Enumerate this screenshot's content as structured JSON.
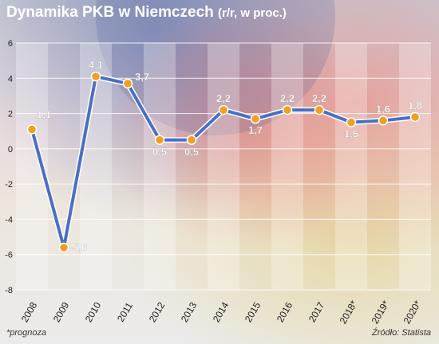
{
  "title": "Dynamika PKB w Niemczech",
  "title_sub": "(r/r, w proc.)",
  "footnote": "*prognoza",
  "source": "Źródło: Statista",
  "colors": {
    "line": "#4a6fc4",
    "line_outline": "#ffffff",
    "marker": "#f0a020",
    "label": "#ffffff",
    "axis_text": "#222222",
    "grid": "#ffffff"
  },
  "chart_data": {
    "type": "line",
    "title": "Dynamika PKB w Niemczech (r/r, w proc.)",
    "categories": [
      "2008",
      "2009",
      "2010",
      "2011",
      "2012",
      "2013",
      "2014",
      "2015",
      "2016",
      "2017",
      "2018*",
      "2019*",
      "2020*"
    ],
    "values": [
      1.1,
      -5.6,
      4.1,
      3.7,
      0.5,
      0.5,
      2.2,
      1.7,
      2.2,
      2.2,
      1.5,
      1.6,
      1.8
    ],
    "data_labels": [
      "1,1",
      "-5,6",
      "4,1",
      "3,7",
      "0,5",
      "0,5",
      "2,2",
      "1,7",
      "2,2",
      "2,2",
      "1,5",
      "1,6",
      "1,8"
    ],
    "yticks": [
      6,
      4,
      2,
      0,
      -2,
      -4,
      -6,
      -8
    ],
    "ylim": [
      -8,
      6
    ],
    "grid": true,
    "xlabel": "",
    "ylabel": ""
  }
}
